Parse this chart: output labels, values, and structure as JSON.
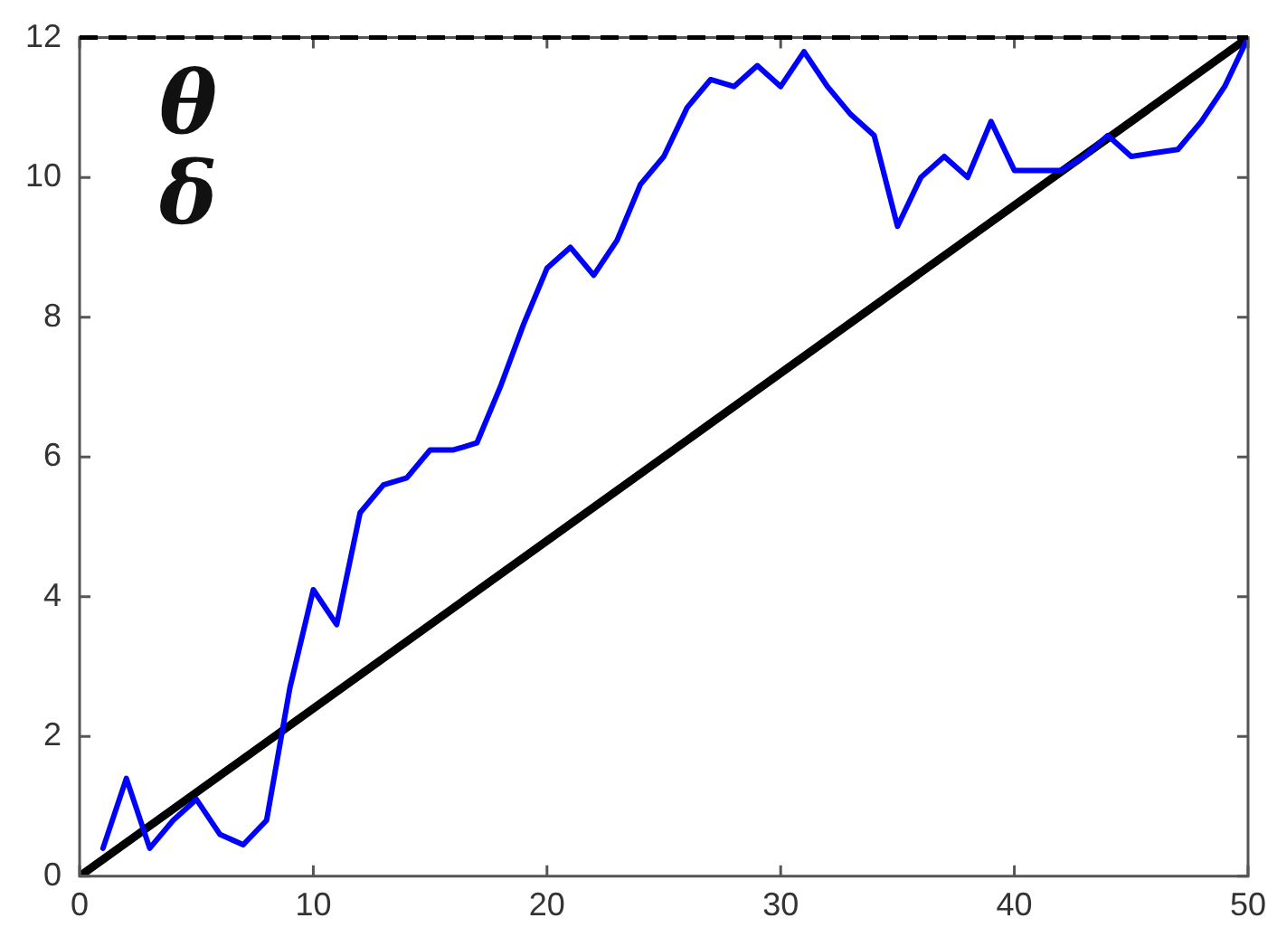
{
  "chart_data": {
    "type": "line",
    "x": [
      1,
      2,
      3,
      4,
      5,
      6,
      7,
      8,
      9,
      10,
      11,
      12,
      13,
      14,
      15,
      16,
      17,
      18,
      19,
      20,
      21,
      22,
      23,
      24,
      25,
      26,
      27,
      28,
      29,
      30,
      31,
      32,
      33,
      34,
      35,
      36,
      37,
      38,
      39,
      40,
      41,
      42,
      43,
      44,
      45,
      46,
      47,
      48,
      49,
      50
    ],
    "series": [
      {
        "color": "#0000ff",
        "values": [
          0.4,
          1.4,
          0.4,
          0.8,
          1.1,
          0.6,
          0.45,
          0.8,
          2.7,
          4.1,
          3.6,
          5.2,
          5.6,
          5.7,
          6.1,
          6.1,
          6.2,
          7.0,
          7.9,
          8.7,
          9.0,
          8.6,
          9.1,
          9.9,
          10.3,
          11.0,
          11.4,
          11.3,
          11.6,
          11.3,
          11.8,
          11.3,
          10.9,
          10.6,
          9.3,
          10.0,
          10.3,
          10.0,
          10.8,
          10.1,
          10.1,
          10.1,
          10.3,
          10.6,
          10.3,
          10.35,
          10.4,
          10.8,
          11.3,
          12
        ]
      },
      {
        "type": "line",
        "color": "#000000",
        "x": [
          0,
          50
        ],
        "values": [
          0,
          12
        ]
      }
    ],
    "ref_lines": [
      {
        "axis": "y",
        "value": 12,
        "color": "#000000",
        "line_style": "dashed"
      }
    ],
    "annotations": [
      "θ",
      "δ"
    ],
    "xlim": [
      0,
      50
    ],
    "xticks": [
      0,
      10,
      20,
      30,
      40,
      50
    ],
    "ylim": [
      0,
      12
    ],
    "yticks": [
      0,
      2,
      4,
      6,
      8,
      10,
      12
    ],
    "grid": false,
    "legend": false,
    "marker": "none"
  }
}
